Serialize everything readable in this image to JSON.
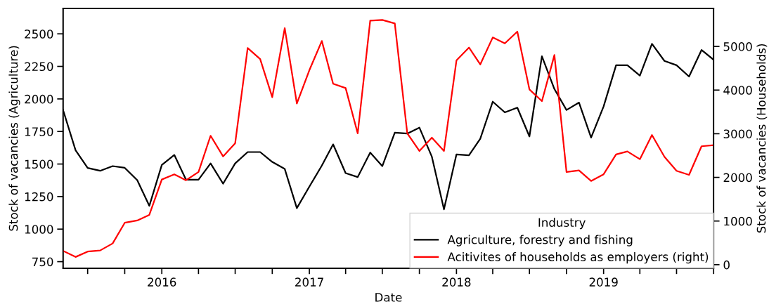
{
  "chart_data": {
    "type": "line",
    "xlabel": "Date",
    "ylabel": "Stock of vacancies (Agriculture)",
    "y2label": "Stock of vacancies (Households)",
    "legend_title": "Industry",
    "legend": "bottom right",
    "grid": false,
    "x": [
      "2015-05",
      "2015-06",
      "2015-07",
      "2015-08",
      "2015-09",
      "2015-10",
      "2015-11",
      "2015-12",
      "2016-01",
      "2016-02",
      "2016-03",
      "2016-04",
      "2016-05",
      "2016-06",
      "2016-07",
      "2016-08",
      "2016-09",
      "2016-10",
      "2016-11",
      "2016-12",
      "2017-01",
      "2017-02",
      "2017-03",
      "2017-04",
      "2017-05",
      "2017-06",
      "2017-07",
      "2017-08",
      "2017-09",
      "2017-10",
      "2017-11",
      "2017-12",
      "2018-01",
      "2018-02",
      "2018-03",
      "2018-04",
      "2018-05",
      "2018-06",
      "2018-07",
      "2018-08",
      "2018-09",
      "2018-10",
      "2018-11",
      "2018-12",
      "2019-01",
      "2019-02",
      "2019-03",
      "2019-04",
      "2019-05",
      "2019-06",
      "2019-07",
      "2019-08",
      "2019-09",
      "2019-10"
    ],
    "xlim": [
      "2015-05",
      "2019-10"
    ],
    "xticks": [
      {
        "value": "2015-07",
        "label": null
      },
      {
        "value": "2015-10",
        "label": null
      },
      {
        "value": "2016-01",
        "label": "2016"
      },
      {
        "value": "2016-04",
        "label": null
      },
      {
        "value": "2016-07",
        "label": null
      },
      {
        "value": "2016-10",
        "label": null
      },
      {
        "value": "2017-01",
        "label": "2017"
      },
      {
        "value": "2017-04",
        "label": null
      },
      {
        "value": "2017-07",
        "label": null
      },
      {
        "value": "2017-10",
        "label": null
      },
      {
        "value": "2018-01",
        "label": "2018"
      },
      {
        "value": "2018-04",
        "label": null
      },
      {
        "value": "2018-07",
        "label": null
      },
      {
        "value": "2018-10",
        "label": null
      },
      {
        "value": "2019-01",
        "label": "2019"
      },
      {
        "value": "2019-04",
        "label": null
      },
      {
        "value": "2019-07",
        "label": null
      },
      {
        "value": "2019-10",
        "label": null
      }
    ],
    "ylim": [
      700,
      2695
    ],
    "yticks": [
      750,
      1000,
      1250,
      1500,
      1750,
      2000,
      2250,
      2500
    ],
    "y2lim": [
      -80,
      5870
    ],
    "y2ticks": [
      0,
      1000,
      2000,
      3000,
      4000,
      5000
    ],
    "series": [
      {
        "name": "Agriculture, forestry and fishing",
        "color": "#000000",
        "values": [
          1915,
          1606,
          1470,
          1448,
          1484,
          1471,
          1376,
          1179,
          1493,
          1570,
          1380,
          1380,
          1505,
          1349,
          1505,
          1592,
          1592,
          1516,
          1462,
          1161,
          1326,
          1488,
          1651,
          1430,
          1400,
          1588,
          1484,
          1741,
          1734,
          1780,
          1556,
          1152,
          1574,
          1567,
          1694,
          1979,
          1897,
          1933,
          1712,
          2328,
          2076,
          1915,
          1972,
          1703,
          1942,
          2259,
          2259,
          2179,
          2423,
          2292,
          2259,
          2172,
          2376,
          2301
        ]
      },
      {
        "name": "Acitivites of households as employers (right)",
        "color": "#ff0000",
        "axis": "y2",
        "values": [
          317,
          177,
          301,
          326,
          487,
          960,
          1013,
          1142,
          1951,
          2070,
          1934,
          2123,
          2954,
          2481,
          2782,
          4964,
          4711,
          3838,
          5419,
          3694,
          4454,
          5125,
          4144,
          4047,
          3007,
          5591,
          5607,
          5527,
          3007,
          2605,
          2911,
          2605,
          4679,
          4974,
          4588,
          5205,
          5070,
          5339,
          4015,
          3747,
          4803,
          2123,
          2160,
          1918,
          2070,
          2525,
          2594,
          2417,
          2970,
          2472,
          2150,
          2058,
          2713,
          2738
        ]
      }
    ]
  }
}
